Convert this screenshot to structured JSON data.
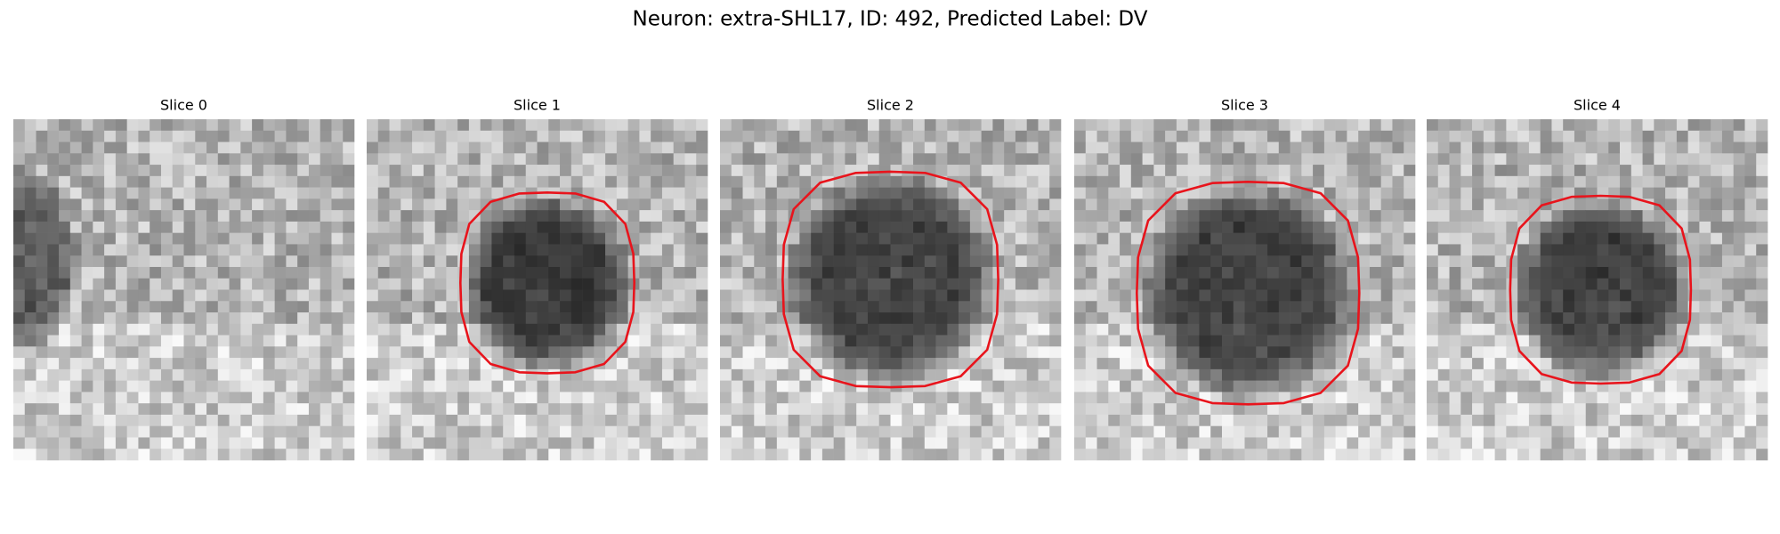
{
  "title": "Neuron: extra-SHL17, ID: 492, Predicted Label: DV",
  "panels": [
    {
      "title": "Slice 0"
    },
    {
      "title": "Slice 1"
    },
    {
      "title": "Slice 2"
    },
    {
      "title": "Slice 3"
    },
    {
      "title": "Slice 4"
    }
  ]
}
